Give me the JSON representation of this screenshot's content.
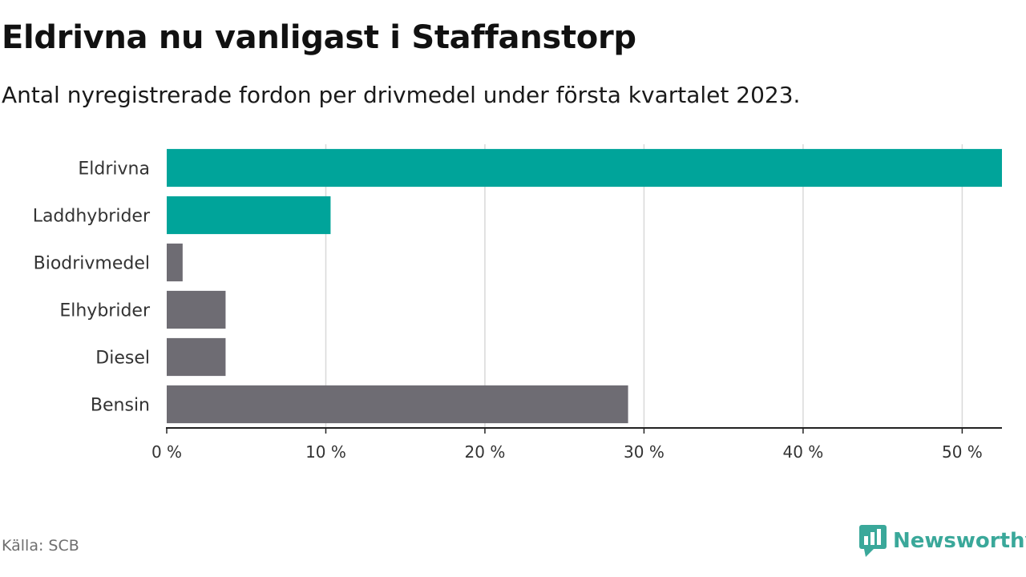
{
  "header": {
    "title": "Eldrivna nu vanligast i Staffanstorp",
    "subtitle": "Antal nyregistrerade fordon per drivmedel under första kvartalet 2023."
  },
  "footer": {
    "source": "Källa: SCB",
    "brand": "Newsworthy",
    "brand_icon": "bar-chart-speech-bubble-icon"
  },
  "colors": {
    "highlight": "#00a49a",
    "neutral": "#6e6c73",
    "grid": "#d9d9d9",
    "axis": "#222222",
    "brand": "#3aa89a"
  },
  "chart_data": {
    "type": "bar",
    "orientation": "horizontal",
    "categories": [
      "Eldrivna",
      "Laddhybrider",
      "Biodrivmedel",
      "Elhybrider",
      "Diesel",
      "Bensin"
    ],
    "values": [
      52.5,
      10.3,
      1.0,
      3.7,
      3.7,
      29.0
    ],
    "highlighted": [
      true,
      true,
      false,
      false,
      false,
      false
    ],
    "xlim": [
      0,
      52.5
    ],
    "ticks": [
      0,
      10,
      20,
      30,
      40,
      50
    ],
    "tick_labels": [
      "0 %",
      "10 %",
      "20 %",
      "30 %",
      "40 %",
      "50 %"
    ],
    "grid": true,
    "legend": "none"
  }
}
